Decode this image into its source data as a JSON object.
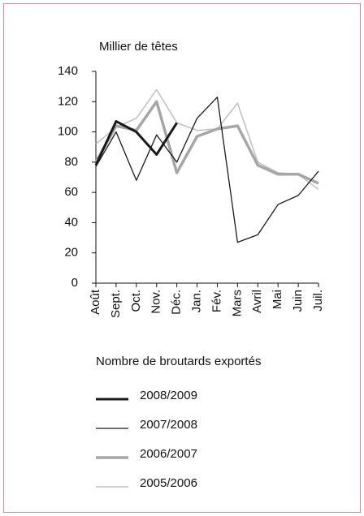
{
  "chart_data": {
    "type": "line",
    "y_label": "Millier de têtes",
    "x_label": "Nombre de broutards exportés",
    "categories": [
      "Août",
      "Sept.",
      "Oct.",
      "Nov.",
      "Déc.",
      "Jan.",
      "Fév.",
      "Mars",
      "Avril",
      "Mai",
      "Juin",
      "Juil."
    ],
    "ylim": [
      0,
      140
    ],
    "yticks": [
      0,
      20,
      40,
      60,
      80,
      100,
      120,
      140
    ],
    "legend": "bottom",
    "series": [
      {
        "name": "2008/2009",
        "color": "#1a1a1a",
        "width": 3,
        "values": [
          78,
          107,
          100,
          85,
          106,
          null,
          null,
          null,
          null,
          null,
          null,
          null
        ]
      },
      {
        "name": "2007/2008",
        "color": "#1a1a1a",
        "width": 1.3,
        "values": [
          77,
          100,
          68,
          98,
          80,
          109,
          123,
          27,
          32,
          52,
          58,
          74
        ]
      },
      {
        "name": "2006/2007",
        "color": "#a6a6a6",
        "width": 3.5,
        "values": [
          80,
          104,
          101,
          120,
          73,
          97,
          102,
          104,
          78,
          72,
          72,
          66
        ]
      },
      {
        "name": "2005/2006",
        "color": "#bfbfbf",
        "width": 1.5,
        "values": [
          92,
          103,
          109,
          128,
          106,
          101,
          102,
          119,
          80,
          73,
          72,
          62
        ]
      }
    ]
  }
}
